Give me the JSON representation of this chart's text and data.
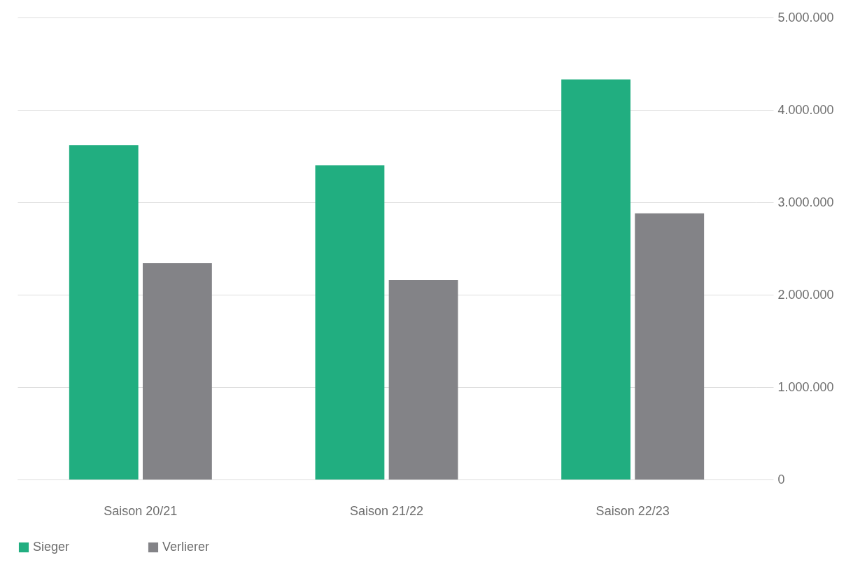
{
  "chart_data": {
    "type": "bar",
    "categories": [
      "Saison 20/21",
      "Saison 21/22",
      "Saison 22/23"
    ],
    "series": [
      {
        "name": "Sieger",
        "color": "#21ae80",
        "values": [
          3620000,
          3400000,
          4330000
        ]
      },
      {
        "name": "Verlierer",
        "color": "#838387",
        "values": [
          2340000,
          2160000,
          2880000
        ]
      }
    ],
    "ylim": [
      0,
      5000000
    ],
    "yticks": [
      {
        "value": 0,
        "label": "0"
      },
      {
        "value": 1000000,
        "label": "1.000.000"
      },
      {
        "value": 2000000,
        "label": "2.000.000"
      },
      {
        "value": 3000000,
        "label": "3.000.000"
      },
      {
        "value": 4000000,
        "label": "4.000.000"
      },
      {
        "value": 5000000,
        "label": "5.000.000"
      }
    ],
    "grid": "y",
    "legend": "bottom left"
  }
}
